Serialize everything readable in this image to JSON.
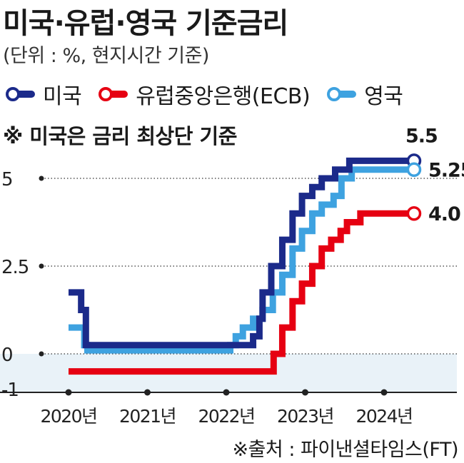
{
  "title": "미국·유럽·영국 기준금리",
  "subtitle": "(단위 : %, 현지시간 기준)",
  "note": "※ 미국은 금리 최상단 기준",
  "source": "※출처 : 파이낸셜타임스(FT)",
  "colors": {
    "us": "#1b2a8a",
    "ecb": "#e60012",
    "uk": "#3ea2e0",
    "negative_band": "#e9f2f8"
  },
  "chart_data": {
    "type": "line",
    "step": true,
    "xlabel": "",
    "ylabel": "",
    "xlim": [
      2019.45,
      2025.0
    ],
    "ylim": [
      -1.15,
      6.0
    ],
    "x_ticks": [
      {
        "value": 2020,
        "label": "2020년"
      },
      {
        "value": 2021,
        "label": "2021년"
      },
      {
        "value": 2022,
        "label": "2022년"
      },
      {
        "value": 2023,
        "label": "2023년"
      },
      {
        "value": 2024,
        "label": "2024년"
      }
    ],
    "y_ticks": [
      {
        "value": 5,
        "label": "5"
      },
      {
        "value": 2.5,
        "label": "2.5"
      },
      {
        "value": 0,
        "label": "0"
      },
      {
        "value": -1,
        "label": "-1"
      }
    ],
    "series": [
      {
        "name": "미국",
        "color_key": "us",
        "end_label": "5.5",
        "points": [
          [
            2020.0,
            1.75
          ],
          [
            2020.16,
            1.25
          ],
          [
            2020.22,
            0.25
          ],
          [
            2022.2,
            0.25
          ],
          [
            2022.34,
            0.5
          ],
          [
            2022.42,
            1.0
          ],
          [
            2022.46,
            1.75
          ],
          [
            2022.57,
            2.5
          ],
          [
            2022.71,
            3.25
          ],
          [
            2022.84,
            4.0
          ],
          [
            2022.96,
            4.5
          ],
          [
            2023.09,
            4.75
          ],
          [
            2023.21,
            5.0
          ],
          [
            2023.38,
            5.25
          ],
          [
            2023.56,
            5.5
          ],
          [
            2024.38,
            5.5
          ]
        ]
      },
      {
        "name": "유럽중앙은행(ECB)",
        "color_key": "ecb",
        "end_label": "4.0",
        "points": [
          [
            2020.0,
            -0.5
          ],
          [
            2022.55,
            -0.5
          ],
          [
            2022.6,
            0.0
          ],
          [
            2022.71,
            0.75
          ],
          [
            2022.84,
            1.5
          ],
          [
            2022.96,
            2.0
          ],
          [
            2023.09,
            2.5
          ],
          [
            2023.21,
            3.0
          ],
          [
            2023.33,
            3.25
          ],
          [
            2023.45,
            3.5
          ],
          [
            2023.53,
            3.75
          ],
          [
            2023.7,
            4.0
          ],
          [
            2024.38,
            4.0
          ]
        ]
      },
      {
        "name": "영국",
        "color_key": "uk",
        "end_label": "5.25",
        "points": [
          [
            2020.0,
            0.75
          ],
          [
            2020.2,
            0.25
          ],
          [
            2020.24,
            0.1
          ],
          [
            2021.97,
            0.1
          ],
          [
            2022.05,
            0.25
          ],
          [
            2022.12,
            0.5
          ],
          [
            2022.21,
            0.75
          ],
          [
            2022.34,
            1.0
          ],
          [
            2022.46,
            1.25
          ],
          [
            2022.59,
            1.75
          ],
          [
            2022.71,
            2.25
          ],
          [
            2022.84,
            3.0
          ],
          [
            2022.96,
            3.5
          ],
          [
            2023.09,
            4.0
          ],
          [
            2023.21,
            4.25
          ],
          [
            2023.36,
            4.5
          ],
          [
            2023.46,
            5.0
          ],
          [
            2023.59,
            5.25
          ],
          [
            2024.38,
            5.25
          ]
        ]
      }
    ]
  }
}
